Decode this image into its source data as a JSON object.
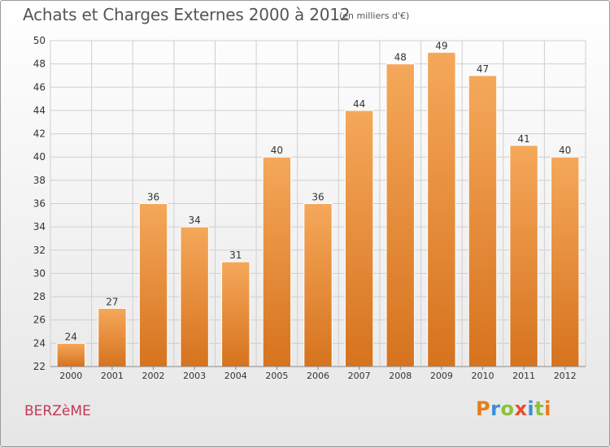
{
  "header": {
    "title": "Achats et Charges Externes 2000 à 2012",
    "subtitle": "(en milliers d'€)"
  },
  "footer": {
    "commune": "BERZèME",
    "logo_letters": [
      "P",
      "r",
      "o",
      "x",
      "i",
      "t",
      "i"
    ],
    "logo_colors": [
      "#e87b1a",
      "#3b8fd6",
      "#8cc23b",
      "#e84d2c",
      "#3b8fd6",
      "#8cc23b",
      "#e87b1a"
    ]
  },
  "colors": {
    "bar_top": "#f5a85a",
    "bar_bottom": "#d6731e",
    "grid": "#cfcfcf",
    "axis_text": "#333333",
    "title": "#555555",
    "commune": "#c0385a"
  },
  "chart_data": {
    "type": "bar",
    "categories": [
      "2000",
      "2001",
      "2002",
      "2003",
      "2004",
      "2005",
      "2006",
      "2007",
      "2008",
      "2009",
      "2010",
      "2011",
      "2012"
    ],
    "values": [
      24,
      27,
      36,
      34,
      31,
      40,
      36,
      44,
      48,
      49,
      47,
      41,
      40
    ],
    "title": "Achats et Charges Externes 2000 à 2012",
    "ylim": [
      22,
      50
    ],
    "yticks": [
      22,
      24,
      26,
      28,
      30,
      32,
      34,
      36,
      38,
      40,
      42,
      44,
      46,
      48,
      50
    ],
    "grid": true,
    "data_labels": true
  }
}
